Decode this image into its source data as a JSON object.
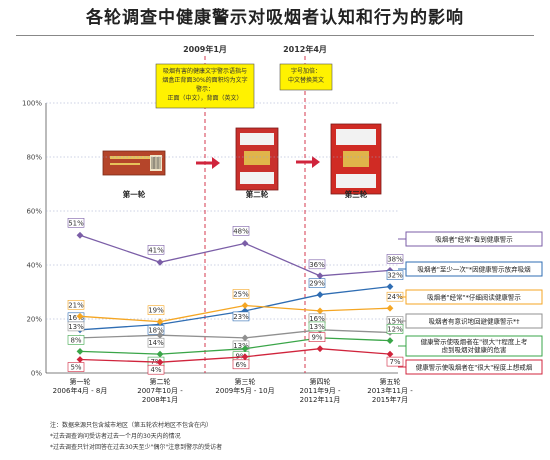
{
  "title": "各轮调查中健康警示对吸烟者认知和行为的影响",
  "time_markers": [
    {
      "label": "2009年1月",
      "box_lines": [
        "吸烟有害的健康文字警示语指与",
        "烟盒正背面30%的面积均为文字",
        "警示：",
        "正面（中文），背面（英文）"
      ]
    },
    {
      "label": "2012年4月",
      "box_lines": [
        "字号加倍：",
        "中文替换英文"
      ]
    }
  ],
  "round_labels": [
    "第一轮",
    "第二轮",
    "第三轮"
  ],
  "notes": [
    "注：数据来源只包含城市地区（第五轮农村地区不包含在内）",
    "*过去调查询问受访者过去一个月的30天内的情况",
    "*过去调查只针对回答在过去30天至少\"偶尔\"注意到警示的受访者"
  ],
  "chart_data": {
    "type": "line",
    "ylim": [
      0,
      100
    ],
    "yticks": [
      "0%",
      "20%",
      "40%",
      "60%",
      "80%",
      "100%"
    ],
    "x_labels": [
      [
        "第一轮",
        "2006年4月 - 8月"
      ],
      [
        "第二轮",
        "2007年10月 -",
        "2008年1月"
      ],
      [
        "第三轮",
        "2009年5月 - 10月"
      ],
      [
        "第四轮",
        "2011年9月 -",
        "2012年11月"
      ],
      [
        "第五轮",
        "2013年11月 -",
        "2015年7月"
      ]
    ],
    "series": [
      {
        "name": "吸烟者\"经常\"看到健康警示",
        "color": "#7b5ea7",
        "values": [
          51,
          41,
          48,
          36,
          38
        ],
        "labels": [
          "51%",
          "41%",
          "48%",
          "36%",
          "38%"
        ]
      },
      {
        "name": "吸烟者\"至少一次\"*因健康警示放弃吸烟",
        "color": "#2f6db3",
        "values": [
          16,
          18,
          23,
          29,
          32
        ],
        "labels": [
          "16%",
          "18%",
          "23%",
          "29%",
          "32%"
        ]
      },
      {
        "name": "吸烟者\"经常\"*仔细阅读健康警示",
        "color": "#f5a623",
        "values": [
          21,
          19,
          25,
          23,
          24
        ],
        "labels": [
          "21%",
          "19%",
          "25%",
          "23%",
          "24%"
        ]
      },
      {
        "name": "吸烟者有意识地回避健康警示*†",
        "color": "#909090",
        "values": [
          13,
          14,
          13,
          16,
          15
        ],
        "labels": [
          "13%",
          "14%",
          "13%",
          "16%",
          "15%"
        ]
      },
      {
        "name": "健康警示使吸烟者在\"很大\"†程度上考虑到吸烟对健康的危害",
        "color": "#3aa548",
        "values": [
          8,
          7,
          9,
          13,
          12
        ],
        "labels": [
          "8%",
          "7%",
          "9%",
          "13%",
          "12%"
        ]
      },
      {
        "name": "健康警示使吸烟者在\"很大\"程度上想戒烟",
        "color": "#d0243c",
        "values": [
          5,
          4,
          6,
          9,
          7
        ],
        "labels": [
          "5%",
          "4%",
          "6%",
          "9%",
          "7%"
        ]
      }
    ]
  }
}
